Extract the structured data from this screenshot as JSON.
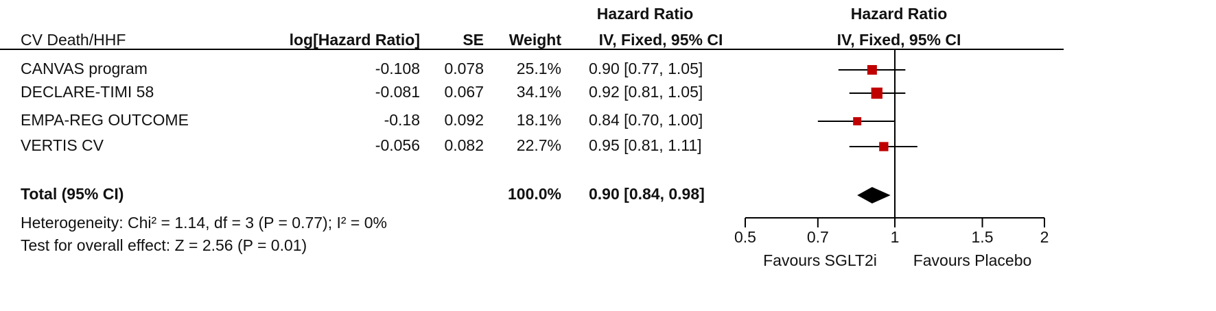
{
  "chart_data": {
    "type": "forest",
    "columns": [
      "CV Death/HHF",
      "log[Hazard Ratio]",
      "SE",
      "Weight"
    ],
    "hr_header": [
      "Hazard Ratio",
      "IV, Fixed, 95% CI"
    ],
    "plot_header": [
      "Hazard Ratio",
      "IV, Fixed, 95% CI"
    ],
    "studies": [
      {
        "name": "CANVAS program",
        "log_hr": -0.108,
        "se": 0.078,
        "weight": 25.1,
        "weight_label": "25.1%",
        "hr": 0.9,
        "ci": [
          0.77,
          1.05
        ],
        "hr_label": "0.90 [0.77, 1.05]"
      },
      {
        "name": "DECLARE-TIMI 58",
        "log_hr": -0.081,
        "se": 0.067,
        "weight": 34.1,
        "weight_label": "34.1%",
        "hr": 0.92,
        "ci": [
          0.81,
          1.05
        ],
        "hr_label": "0.92 [0.81, 1.05]"
      },
      {
        "name": "EMPA-REG OUTCOME",
        "log_hr": -0.18,
        "se": 0.092,
        "weight": 18.1,
        "weight_label": "18.1%",
        "hr": 0.84,
        "ci": [
          0.7,
          1.0
        ],
        "hr_label": "0.84 [0.70, 1.00]"
      },
      {
        "name": "VERTIS CV",
        "log_hr": -0.056,
        "se": 0.082,
        "weight": 22.7,
        "weight_label": "22.7%",
        "hr": 0.95,
        "ci": [
          0.81,
          1.11
        ],
        "hr_label": "0.95 [0.81, 1.11]"
      }
    ],
    "total": {
      "name": "Total (95% CI)",
      "weight": 100.0,
      "weight_label": "100.0%",
      "hr": 0.9,
      "ci": [
        0.84,
        0.98
      ],
      "hr_label": "0.90 [0.84, 0.98]"
    },
    "footnotes": [
      "Heterogeneity: Chi² = 1.14, df = 3 (P = 0.77); I² = 0%",
      "Test for overall effect: Z = 2.56 (P = 0.01)"
    ],
    "favours": [
      "Favours SGLT2i",
      "Favours Placebo"
    ],
    "xscale": "log",
    "xlim": [
      0.5,
      2
    ],
    "xticks": [
      0.5,
      0.7,
      1,
      1.5,
      2
    ],
    "reference": 1,
    "marker_color": "#c00000",
    "diamond_color": "#000000"
  }
}
